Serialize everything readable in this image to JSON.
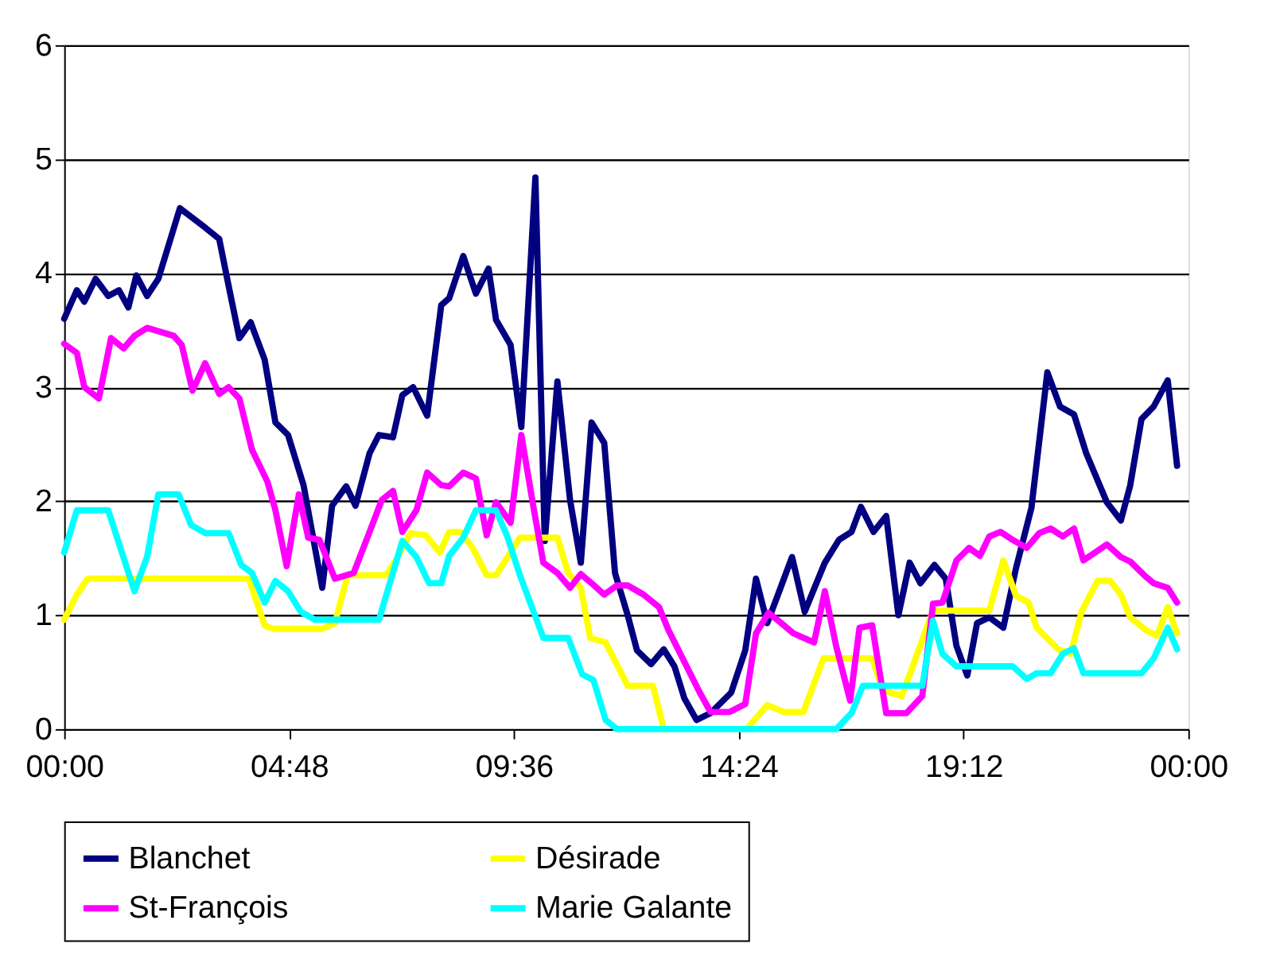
{
  "chart_data": {
    "type": "line",
    "xlim": [
      0,
      24
    ],
    "ylim": [
      0,
      6
    ],
    "xticks": [
      {
        "value": 0,
        "label": "00:00"
      },
      {
        "value": 4.8,
        "label": "04:48"
      },
      {
        "value": 9.6,
        "label": "09:36"
      },
      {
        "value": 14.4,
        "label": "14:24"
      },
      {
        "value": 19.2,
        "label": "19:12"
      },
      {
        "value": 24,
        "label": "00:00"
      }
    ],
    "yticks": [
      0,
      1,
      2,
      3,
      4,
      5,
      6
    ],
    "grid": "y",
    "legend": "bottom",
    "marker": "none",
    "line_style": "solid",
    "series": [
      {
        "name": "Blanchet",
        "color": "#000080",
        "x": [
          0,
          0.27,
          0.43,
          0.67,
          0.94,
          1.17,
          1.37,
          1.54,
          1.77,
          2.01,
          2.47,
          3.01,
          3.31,
          3.51,
          3.74,
          3.98,
          4.28,
          4.51,
          4.78,
          5.11,
          5.51,
          5.72,
          6.02,
          6.22,
          6.52,
          6.72,
          7.02,
          7.22,
          7.45,
          7.75,
          8.05,
          8.22,
          8.52,
          8.79,
          9.06,
          9.22,
          9.53,
          9.76,
          10.06,
          10.26,
          10.53,
          10.8,
          11.03,
          11.26,
          11.53,
          11.76,
          12.03,
          12.23,
          12.53,
          12.8,
          13.03,
          13.24,
          13.5,
          13.8,
          14.24,
          14.54,
          14.77,
          15.01,
          15.24,
          15.54,
          15.81,
          16.24,
          16.54,
          16.81,
          17.01,
          17.28,
          17.55,
          17.81,
          18.05,
          18.28,
          18.58,
          18.82,
          19.05,
          19.28,
          19.49,
          19.75,
          20.05,
          20.32,
          20.65,
          20.99,
          21.26,
          21.56,
          21.82,
          22.26,
          22.56,
          22.76,
          23.0,
          23.26,
          23.56,
          23.76
        ],
        "values": [
          3.6,
          3.85,
          3.75,
          3.95,
          3.8,
          3.85,
          3.7,
          3.98,
          3.8,
          3.95,
          4.57,
          4.4,
          4.3,
          3.89,
          3.43,
          3.57,
          3.24,
          2.69,
          2.58,
          2.14,
          1.24,
          1.96,
          2.13,
          1.96,
          2.42,
          2.58,
          2.56,
          2.93,
          3.0,
          2.75,
          3.72,
          3.78,
          4.15,
          3.82,
          4.04,
          3.59,
          3.37,
          2.65,
          4.84,
          1.65,
          3.05,
          2.01,
          1.46,
          2.69,
          2.51,
          1.37,
          1.0,
          0.69,
          0.57,
          0.7,
          0.55,
          0.27,
          0.08,
          0.14,
          0.32,
          0.69,
          1.32,
          0.93,
          1.18,
          1.51,
          1.03,
          1.46,
          1.66,
          1.73,
          1.95,
          1.73,
          1.87,
          1.0,
          1.46,
          1.28,
          1.44,
          1.32,
          0.73,
          0.47,
          0.93,
          0.98,
          0.89,
          1.41,
          1.94,
          3.13,
          2.83,
          2.76,
          2.42,
          1.99,
          1.83,
          2.14,
          2.72,
          2.83,
          3.06,
          2.31
        ]
      },
      {
        "name": "Désirade",
        "color": "#ffff00",
        "x": [
          0,
          0.27,
          0.5,
          3.94,
          4.28,
          4.45,
          5.51,
          5.78,
          6.05,
          6.88,
          7.12,
          7.39,
          7.72,
          8.02,
          8.22,
          8.46,
          8.72,
          9.02,
          9.22,
          9.73,
          10.53,
          10.76,
          11.03,
          11.23,
          11.56,
          12.03,
          12.57,
          12.8,
          14.57,
          15.01,
          15.37,
          15.78,
          16.21,
          17.25,
          17.48,
          17.88,
          18.15,
          18.55,
          19.75,
          20.05,
          20.32,
          20.59,
          20.76,
          21.22,
          21.49,
          21.72,
          22.06,
          22.33,
          22.56,
          22.76,
          23.09,
          23.33,
          23.56,
          23.76
        ],
        "values": [
          0.96,
          1.18,
          1.32,
          1.32,
          0.91,
          0.88,
          0.88,
          0.93,
          1.35,
          1.35,
          1.51,
          1.72,
          1.7,
          1.55,
          1.73,
          1.73,
          1.59,
          1.35,
          1.35,
          1.68,
          1.68,
          1.37,
          1.24,
          0.8,
          0.76,
          0.38,
          0.38,
          0,
          0,
          0.21,
          0.15,
          0.15,
          0.62,
          0.62,
          0.34,
          0.29,
          0.59,
          1.04,
          1.04,
          1.48,
          1.17,
          1.11,
          0.89,
          0.7,
          0.66,
          1.03,
          1.3,
          1.3,
          1.18,
          0.98,
          0.87,
          0.82,
          1.07,
          0.84
        ]
      },
      {
        "name": "St-François",
        "color": "#ff00ff",
        "x": [
          0,
          0.27,
          0.43,
          0.74,
          1.0,
          1.27,
          1.5,
          1.77,
          2.34,
          2.51,
          2.74,
          3.01,
          3.31,
          3.51,
          3.74,
          4.01,
          4.34,
          4.51,
          4.75,
          5.01,
          5.21,
          5.45,
          5.78,
          6.18,
          6.52,
          6.78,
          7.02,
          7.22,
          7.52,
          7.75,
          8.05,
          8.22,
          8.52,
          8.79,
          9.02,
          9.22,
          9.53,
          9.76,
          10.03,
          10.23,
          10.53,
          10.8,
          11.03,
          11.26,
          11.53,
          11.8,
          12.03,
          12.37,
          12.7,
          12.9,
          13.24,
          13.57,
          13.8,
          14.2,
          14.54,
          14.77,
          15.04,
          15.31,
          15.57,
          16.01,
          16.24,
          16.48,
          16.78,
          16.98,
          17.25,
          17.55,
          17.98,
          18.32,
          18.55,
          18.75,
          19.05,
          19.32,
          19.55,
          19.75,
          19.99,
          20.25,
          20.55,
          20.82,
          21.06,
          21.32,
          21.56,
          21.76,
          22.26,
          22.56,
          22.76,
          23.06,
          23.26,
          23.56,
          23.76
        ],
        "values": [
          3.38,
          3.3,
          3.0,
          2.9,
          3.43,
          3.34,
          3.45,
          3.52,
          3.45,
          3.37,
          2.97,
          3.21,
          2.94,
          3.0,
          2.9,
          2.45,
          2.17,
          1.92,
          1.43,
          2.06,
          1.68,
          1.66,
          1.32,
          1.37,
          1.73,
          2.01,
          2.09,
          1.73,
          1.92,
          2.25,
          2.14,
          2.13,
          2.25,
          2.2,
          1.7,
          1.99,
          1.81,
          2.58,
          1.92,
          1.46,
          1.37,
          1.24,
          1.36,
          1.28,
          1.18,
          1.26,
          1.26,
          1.18,
          1.07,
          0.87,
          0.59,
          0.32,
          0.15,
          0.15,
          0.22,
          0.84,
          1.02,
          0.93,
          0.84,
          0.76,
          1.21,
          0.73,
          0.25,
          0.89,
          0.91,
          0.14,
          0.14,
          0.29,
          1.1,
          1.11,
          1.48,
          1.59,
          1.52,
          1.69,
          1.73,
          1.66,
          1.59,
          1.72,
          1.76,
          1.69,
          1.76,
          1.48,
          1.62,
          1.51,
          1.47,
          1.35,
          1.28,
          1.24,
          1.11
        ]
      },
      {
        "name": "Marie Galante",
        "color": "#00ffff",
        "x": [
          0,
          0.27,
          0.94,
          1.5,
          1.77,
          2.01,
          2.44,
          2.71,
          3.01,
          3.51,
          3.78,
          4.01,
          4.28,
          4.51,
          4.78,
          5.05,
          5.35,
          6.72,
          7.22,
          7.52,
          7.79,
          8.05,
          8.22,
          8.52,
          8.79,
          9.22,
          9.46,
          9.73,
          10.23,
          10.76,
          11.06,
          11.3,
          11.56,
          11.8,
          16.48,
          16.81,
          17.05,
          18.32,
          18.55,
          18.75,
          19.05,
          20.25,
          20.55,
          20.76,
          21.06,
          21.32,
          21.56,
          21.76,
          23.0,
          23.26,
          23.56,
          23.76
        ],
        "values": [
          1.55,
          1.92,
          1.92,
          1.21,
          1.51,
          2.06,
          2.06,
          1.79,
          1.72,
          1.72,
          1.44,
          1.37,
          1.11,
          1.3,
          1.21,
          1.03,
          0.96,
          0.96,
          1.65,
          1.51,
          1.28,
          1.28,
          1.52,
          1.68,
          1.92,
          1.92,
          1.69,
          1.35,
          0.8,
          0.8,
          0.48,
          0.43,
          0.08,
          0,
          0,
          0.14,
          0.38,
          0.38,
          0.95,
          0.66,
          0.55,
          0.55,
          0.44,
          0.49,
          0.49,
          0.66,
          0.71,
          0.49,
          0.49,
          0.62,
          0.89,
          0.7
        ]
      }
    ]
  }
}
